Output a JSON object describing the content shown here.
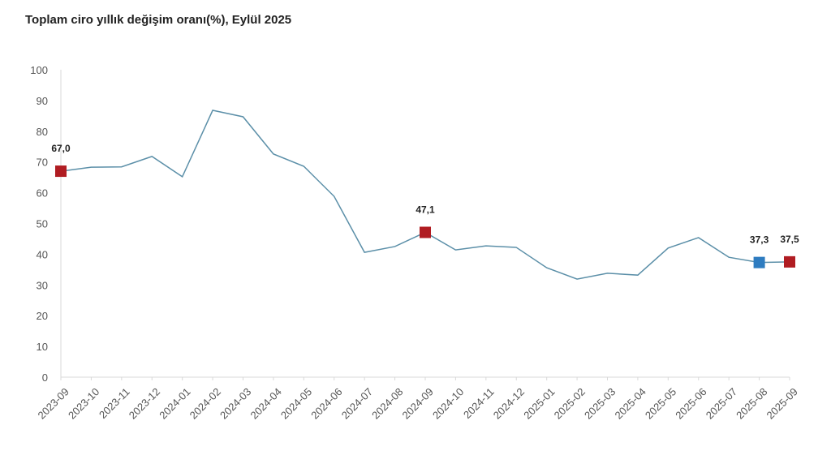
{
  "chart_data": {
    "type": "line",
    "title": "Toplam ciro yıllık değişim oranı(%), Eylül 2025",
    "xlabel": "",
    "ylabel": "",
    "ylim": [
      0,
      100
    ],
    "yticks": [
      0,
      10,
      20,
      30,
      40,
      50,
      60,
      70,
      80,
      90,
      100
    ],
    "grid": false,
    "categories": [
      "2023-09",
      "2023-10",
      "2023-11",
      "2023-12",
      "2024-01",
      "2024-02",
      "2024-03",
      "2024-04",
      "2024-05",
      "2024-06",
      "2024-07",
      "2024-08",
      "2024-09",
      "2024-10",
      "2024-11",
      "2024-12",
      "2025-01",
      "2025-02",
      "2025-03",
      "2025-04",
      "2025-05",
      "2025-06",
      "2025-07",
      "2025-08",
      "2025-09"
    ],
    "series": [
      {
        "name": "Toplam ciro yıllık değişim oranı",
        "color": "#5b8fa8",
        "values": [
          67.0,
          68.3,
          68.4,
          71.8,
          65.2,
          86.8,
          84.7,
          72.6,
          68.6,
          58.8,
          40.6,
          42.5,
          47.1,
          41.4,
          42.7,
          42.2,
          35.6,
          31.9,
          33.8,
          33.2,
          42.0,
          45.4,
          39.0,
          37.3,
          37.5
        ]
      }
    ],
    "highlighted_points": [
      {
        "index": 0,
        "label": "67,0",
        "color": "#b01c22"
      },
      {
        "index": 12,
        "label": "47,1",
        "color": "#b01c22"
      },
      {
        "index": 23,
        "label": "37,3",
        "color": "#2e7cc0"
      },
      {
        "index": 24,
        "label": "37,5",
        "color": "#b01c22"
      }
    ]
  }
}
